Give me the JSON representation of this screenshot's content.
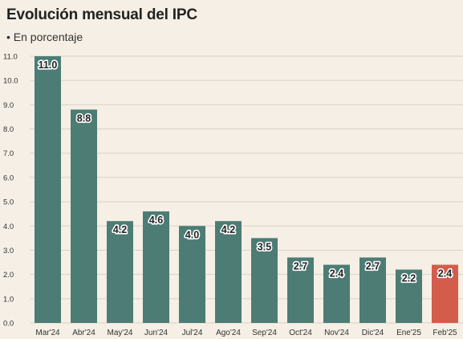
{
  "header": {
    "title": "Evolución mensual del IPC",
    "subtitle": "• En porcentaje"
  },
  "chart_data": {
    "type": "bar",
    "title": "Evolución mensual del IPC",
    "subtitle": "• En porcentaje",
    "categories": [
      "Mar'24",
      "Abr'24",
      "May'24",
      "Jun'24",
      "Jul'24",
      "Ago'24",
      "Sep'24",
      "Oct'24",
      "Nov'24",
      "Dic'24",
      "Ene'25",
      "Feb'25"
    ],
    "values": [
      11.0,
      8.8,
      4.2,
      4.6,
      4.0,
      4.2,
      3.5,
      2.7,
      2.4,
      2.7,
      2.2,
      2.4
    ],
    "value_labels": [
      "11.0",
      "8.8",
      "4.2",
      "4.6",
      "4.0",
      "4.2",
      "3.5",
      "2.7",
      "2.4",
      "2.7",
      "2.2",
      "2.4"
    ],
    "yticks": [
      "0.0",
      "1.0",
      "2.0",
      "3.0",
      "4.0",
      "5.0",
      "6.0",
      "7.0",
      "8.0",
      "9.0",
      "10.0",
      "11.0"
    ],
    "ylim": [
      0,
      11
    ],
    "grid": true,
    "legend": "none",
    "colors": {
      "bar": "#4c7c74",
      "highlight": "#d35c4b",
      "grid": "#d9d2c7",
      "background": "#f5efe5"
    },
    "highlight_index": 11
  }
}
